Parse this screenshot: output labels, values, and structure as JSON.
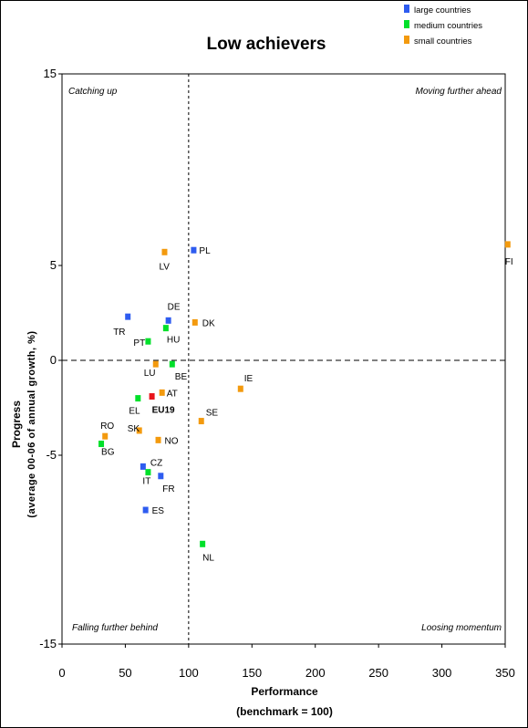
{
  "chart_data": {
    "type": "scatter",
    "title": "Low achievers",
    "xlabel": "Performance",
    "xlabel_sub": "(benchmark = 100)",
    "ylabel": "Progress",
    "ylabel_sub": "(average 00-06 of annual growth, %)",
    "xlim": [
      0,
      350
    ],
    "ylim": [
      -15,
      15
    ],
    "xticks": [
      "0",
      "50",
      "100",
      "150",
      "200",
      "250",
      "300",
      "350"
    ],
    "yticks": [
      "15",
      "5",
      "0",
      "-5",
      "-15"
    ],
    "reference_lines": {
      "x": 100,
      "y": 0
    },
    "quadrants": {
      "top_left": "Catching up",
      "top_right": "Moving further ahead",
      "bottom_left": "Falling further behind",
      "bottom_right": "Loosing momentum"
    },
    "legend": [
      {
        "name": "large countries",
        "color": "#2e5cf0"
      },
      {
        "name": "medium countries",
        "color": "#00e02a"
      },
      {
        "name": "small countries",
        "color": "#f39a0e"
      }
    ],
    "eu_color": "#e8141c",
    "points": [
      {
        "label": "PL",
        "x": 104,
        "y": 5.8,
        "group": "large"
      },
      {
        "label": "LV",
        "x": 81,
        "y": 5.7,
        "group": "small"
      },
      {
        "label": "FI",
        "x": 352,
        "y": 6.1,
        "group": "small"
      },
      {
        "label": "DE",
        "x": 84,
        "y": 2.1,
        "group": "large"
      },
      {
        "label": "TR",
        "x": 52,
        "y": 2.3,
        "group": "large"
      },
      {
        "label": "HU",
        "x": 82,
        "y": 1.7,
        "group": "medium"
      },
      {
        "label": "DK",
        "x": 105,
        "y": 2.0,
        "group": "small"
      },
      {
        "label": "PT",
        "x": 68,
        "y": 1.0,
        "group": "medium"
      },
      {
        "label": "LU",
        "x": 74,
        "y": -0.2,
        "group": "small"
      },
      {
        "label": "BE",
        "x": 87,
        "y": -0.2,
        "group": "medium"
      },
      {
        "label": "IE",
        "x": 141,
        "y": -1.5,
        "group": "small"
      },
      {
        "label": "AT",
        "x": 79,
        "y": -1.7,
        "group": "small"
      },
      {
        "label": "EL",
        "x": 60,
        "y": -2.0,
        "group": "medium"
      },
      {
        "label": "EU19",
        "x": 71,
        "y": -1.9,
        "group": "eu"
      },
      {
        "label": "SE",
        "x": 110,
        "y": -3.2,
        "group": "small"
      },
      {
        "label": "RO",
        "x": 34,
        "y": -4.0,
        "group": "small"
      },
      {
        "label": "SK",
        "x": 61,
        "y": -3.7,
        "group": "small"
      },
      {
        "label": "NO",
        "x": 76,
        "y": -4.2,
        "group": "small"
      },
      {
        "label": "BG",
        "x": 31,
        "y": -4.4,
        "group": "medium"
      },
      {
        "label": "CZ",
        "x": 64,
        "y": -5.6,
        "group": "large"
      },
      {
        "label": "IT",
        "x": 68,
        "y": -5.9,
        "group": "medium"
      },
      {
        "label": "FR",
        "x": 78,
        "y": -6.1,
        "group": "large"
      },
      {
        "label": "ES",
        "x": 66,
        "y": -7.9,
        "group": "large"
      },
      {
        "label": "NL",
        "x": 111,
        "y": -9.7,
        "group": "medium"
      }
    ]
  }
}
